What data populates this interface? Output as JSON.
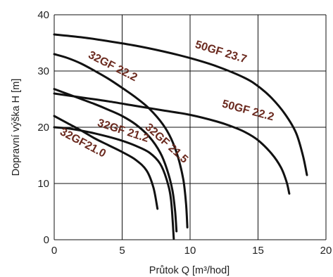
{
  "chart_data": {
    "type": "line",
    "xlabel": "Průtok Q [m³/hod]",
    "ylabel": "Dopravní výška H [m]",
    "xlim": [
      0,
      20
    ],
    "ylim": [
      0,
      40
    ],
    "xticks": [
      0,
      5,
      10,
      15,
      20
    ],
    "yticks": [
      0,
      10,
      20,
      30,
      40
    ],
    "grid": true,
    "series": [
      {
        "name": "50GF 23.7",
        "x": [
          0,
          2,
          4,
          6,
          8,
          10,
          12,
          14,
          15,
          16,
          17,
          17.8,
          18.3,
          18.6
        ],
        "y": [
          36.5,
          36.0,
          35.3,
          34.5,
          33.5,
          32.3,
          30.8,
          28.8,
          27.3,
          25.2,
          22.3,
          19.0,
          15.0,
          11.5
        ]
      },
      {
        "name": "50GF 22.2",
        "x": [
          0,
          2,
          4,
          6,
          8,
          10,
          12,
          13,
          14,
          15,
          16,
          16.7,
          17.1,
          17.3
        ],
        "y": [
          26.0,
          25.3,
          24.6,
          23.8,
          23.0,
          22.2,
          21.0,
          20.2,
          19.2,
          17.7,
          15.3,
          12.8,
          10.3,
          8.2
        ]
      },
      {
        "name": "32GF 22.2",
        "x": [
          0,
          1,
          2,
          3,
          4,
          5,
          6,
          7,
          8,
          8.6,
          9.1,
          9.5,
          9.7,
          9.8
        ],
        "y": [
          33.0,
          32.3,
          31.3,
          30.0,
          28.6,
          27.0,
          25.3,
          23.3,
          20.5,
          18.0,
          14.8,
          10.7,
          6.5,
          2.2
        ]
      },
      {
        "name": "32GF 21.5",
        "x": [
          0,
          1,
          2,
          3,
          4,
          5,
          6,
          7,
          7.8,
          8.3,
          8.7,
          8.9,
          9.0
        ],
        "y": [
          26.8,
          25.9,
          25.0,
          24.1,
          23.1,
          22.0,
          20.5,
          18.3,
          15.5,
          12.5,
          8.8,
          5.0,
          1.5
        ]
      },
      {
        "name": "32GF 21.2",
        "x": [
          0,
          1,
          2,
          3,
          4,
          5,
          6,
          7,
          7.8,
          8.3,
          8.6,
          8.8
        ],
        "y": [
          20.0,
          19.8,
          19.4,
          18.9,
          18.3,
          17.6,
          16.7,
          15.5,
          13.5,
          10.5,
          7.0,
          0.2
        ]
      },
      {
        "name": "32GF21.0",
        "x": [
          0,
          1,
          2,
          3,
          4,
          5,
          6,
          6.8,
          7.3,
          7.6
        ],
        "y": [
          22.0,
          20.7,
          19.4,
          18.0,
          16.8,
          15.6,
          14.2,
          12.3,
          9.3,
          5.5
        ]
      }
    ],
    "annotations": [
      {
        "text": "50GF 23.7",
        "series": 0,
        "x": 12.2,
        "y": 32.8,
        "rotate": 17
      },
      {
        "text": "50GF 22.2",
        "series": 1,
        "x": 14.2,
        "y": 22.4,
        "rotate": 15
      },
      {
        "text": "32GF 22.2",
        "series": 2,
        "x": 4.2,
        "y": 30.3,
        "rotate": 27
      },
      {
        "text": "32GF 21.5",
        "series": 3,
        "x": 8.1,
        "y": 16.7,
        "rotate": 42
      },
      {
        "text": "32GF 21.2",
        "series": 4,
        "x": 5.0,
        "y": 18.8,
        "rotate": 18
      },
      {
        "text": "32GF21.0",
        "series": 5,
        "x": 2.0,
        "y": 16.7,
        "rotate": 28
      }
    ]
  }
}
